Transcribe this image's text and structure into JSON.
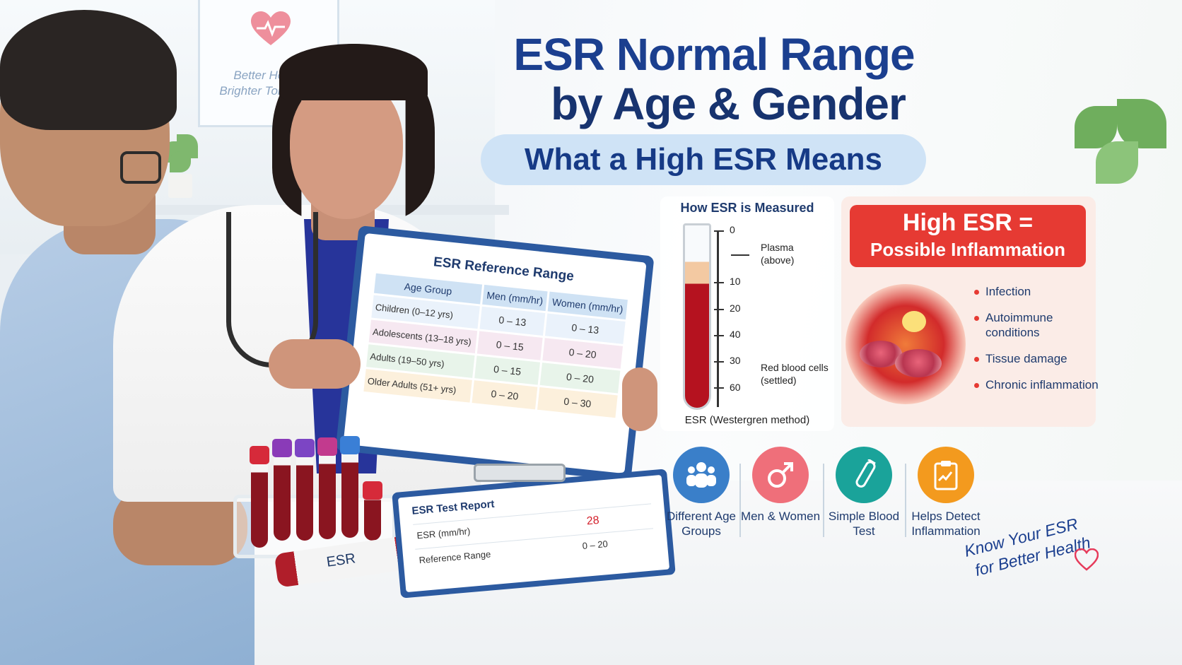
{
  "headline": {
    "line1": "ESR Normal Range",
    "line2": "by Age & Gender",
    "subtitle": "What a High ESR Means"
  },
  "wall_poster": {
    "line1": "Better Health",
    "line2": "Brighter Tomorrow"
  },
  "reference_card": {
    "title": "ESR Reference Range",
    "headers": [
      "Age Group",
      "Men (mm/hr)",
      "Women (mm/hr)"
    ],
    "rows": [
      {
        "group": "Children (0–12 yrs)",
        "men": "0 – 13",
        "women": "0 – 13"
      },
      {
        "group": "Adolescents (13–18 yrs)",
        "men": "0 – 15",
        "women": "0 – 20"
      },
      {
        "group": "Adults (19–50 yrs)",
        "men": "0 – 15",
        "women": "0 – 20"
      },
      {
        "group": "Older Adults (51+ yrs)",
        "men": "0 – 20",
        "women": "0 – 30"
      }
    ]
  },
  "report": {
    "title": "ESR Test Report",
    "rows": [
      {
        "label": "ESR  (mm/hr)",
        "value": "28"
      },
      {
        "label": "Reference Range",
        "value": "0 – 20"
      }
    ]
  },
  "tube_label": "ESR",
  "measurement": {
    "title": "How ESR is Measured",
    "scale_labels": [
      "0",
      "10",
      "20",
      "40",
      "30",
      "60"
    ],
    "plasma_label": "Plasma (above)",
    "rbc_label": "Red blood cells (settled)",
    "footer": "ESR (Westergren method)"
  },
  "high_esr": {
    "title": "High ESR =",
    "subtitle": "Possible Inflammation",
    "causes": [
      "Infection",
      "Autoimmune conditions",
      "Tissue damage",
      "Chronic inflammation"
    ],
    "banner_color": "#e63a33"
  },
  "features": [
    {
      "icon": "group-people-icon",
      "label": "Different Age Groups",
      "color": "#3a7fc9"
    },
    {
      "icon": "male-symbol-icon",
      "label": "Men & Women",
      "color": "#ef6f7a"
    },
    {
      "icon": "test-tube-icon",
      "label": "Simple Blood Test",
      "color": "#1aa39a"
    },
    {
      "icon": "clipboard-icon",
      "label": "Helps Detect Inflammation",
      "color": "#f39a1e"
    }
  ],
  "handwritten": {
    "line1": "Know Your ESR",
    "line2": "for Better Health"
  },
  "colors": {
    "title_blue": "#1b3f8f",
    "accent_red": "#e63a33"
  }
}
